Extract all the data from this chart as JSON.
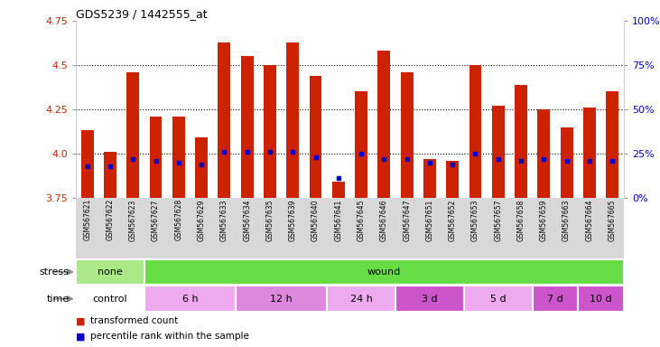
{
  "title": "GDS5239 / 1442555_at",
  "samples": [
    "GSM567621",
    "GSM567622",
    "GSM567623",
    "GSM567627",
    "GSM567628",
    "GSM567629",
    "GSM567633",
    "GSM567634",
    "GSM567635",
    "GSM567639",
    "GSM567640",
    "GSM567641",
    "GSM567645",
    "GSM567646",
    "GSM567647",
    "GSM567651",
    "GSM567652",
    "GSM567653",
    "GSM567657",
    "GSM567658",
    "GSM567659",
    "GSM567663",
    "GSM567664",
    "GSM567665"
  ],
  "red_values": [
    4.13,
    4.01,
    4.46,
    4.21,
    4.21,
    4.09,
    4.63,
    4.55,
    4.5,
    4.63,
    4.44,
    3.84,
    4.35,
    4.58,
    4.46,
    3.97,
    3.96,
    4.5,
    4.27,
    4.39,
    4.25,
    4.15,
    4.26,
    4.35
  ],
  "blue_values": [
    3.93,
    3.93,
    3.97,
    3.96,
    3.95,
    3.94,
    4.01,
    4.01,
    4.01,
    4.01,
    3.98,
    3.86,
    4.0,
    3.97,
    3.97,
    3.95,
    3.94,
    4.0,
    3.97,
    3.96,
    3.97,
    3.96,
    3.96,
    3.96
  ],
  "ymin": 3.75,
  "ymax": 4.75,
  "yticks": [
    3.75,
    4.0,
    4.25,
    4.5,
    4.75
  ],
  "right_ytick_vals": [
    0,
    25,
    50,
    75,
    100
  ],
  "right_ytick_labels": [
    "0%",
    "25%",
    "50%",
    "75%",
    "100%"
  ],
  "bar_color": "#cc2200",
  "blue_color": "#0000cc",
  "grid_lines": [
    4.0,
    4.25,
    4.5
  ],
  "stress_groups": [
    {
      "label": "none",
      "start": 0,
      "end": 3,
      "color": "#aae888"
    },
    {
      "label": "wound",
      "start": 3,
      "end": 24,
      "color": "#66dd44"
    }
  ],
  "time_groups": [
    {
      "label": "control",
      "start": 0,
      "end": 3,
      "color": "#ffffff"
    },
    {
      "label": "6 h",
      "start": 3,
      "end": 7,
      "color": "#eeaaee"
    },
    {
      "label": "12 h",
      "start": 7,
      "end": 11,
      "color": "#dd88dd"
    },
    {
      "label": "24 h",
      "start": 11,
      "end": 14,
      "color": "#eeaaee"
    },
    {
      "label": "3 d",
      "start": 14,
      "end": 17,
      "color": "#cc55cc"
    },
    {
      "label": "5 d",
      "start": 17,
      "end": 20,
      "color": "#eeaaee"
    },
    {
      "label": "7 d",
      "start": 20,
      "end": 22,
      "color": "#cc55cc"
    },
    {
      "label": "10 d",
      "start": 22,
      "end": 24,
      "color": "#cc55cc"
    }
  ],
  "sample_bg": "#d8d8d8",
  "legend_items": [
    {
      "color": "#cc2200",
      "label": "transformed count"
    },
    {
      "color": "#0000cc",
      "label": "percentile rank within the sample"
    }
  ]
}
